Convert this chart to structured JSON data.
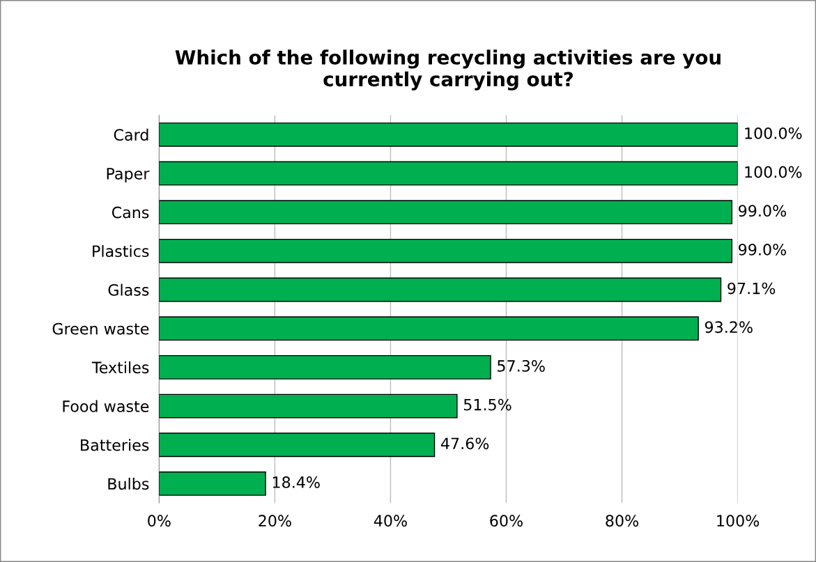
{
  "chart_data": {
    "type": "bar",
    "orientation": "horizontal",
    "title": "Which of the following recycling activities are you\ncurrently carrying out?",
    "categories": [
      "Card",
      "Paper",
      "Cans",
      "Plastics",
      "Glass",
      "Green waste",
      "Textiles",
      "Food waste",
      "Batteries",
      "Bulbs"
    ],
    "values": [
      100.0,
      100.0,
      99.0,
      99.0,
      97.1,
      93.2,
      57.3,
      51.5,
      47.6,
      18.4
    ],
    "value_labels": [
      "100.0%",
      "100.0%",
      "99.0%",
      "99.0%",
      "97.1%",
      "93.2%",
      "57.3%",
      "51.5%",
      "47.6%",
      "18.4%"
    ],
    "color": "#00b050",
    "xlim": [
      0,
      100
    ],
    "xticks": [
      {
        "value": 0,
        "label": "0%"
      },
      {
        "value": 20,
        "label": "20%"
      },
      {
        "value": 40,
        "label": "40%"
      },
      {
        "value": 60,
        "label": "60%"
      },
      {
        "value": 80,
        "label": "80%"
      },
      {
        "value": 100,
        "label": "100%"
      }
    ],
    "grid": "x",
    "legend": false
  }
}
